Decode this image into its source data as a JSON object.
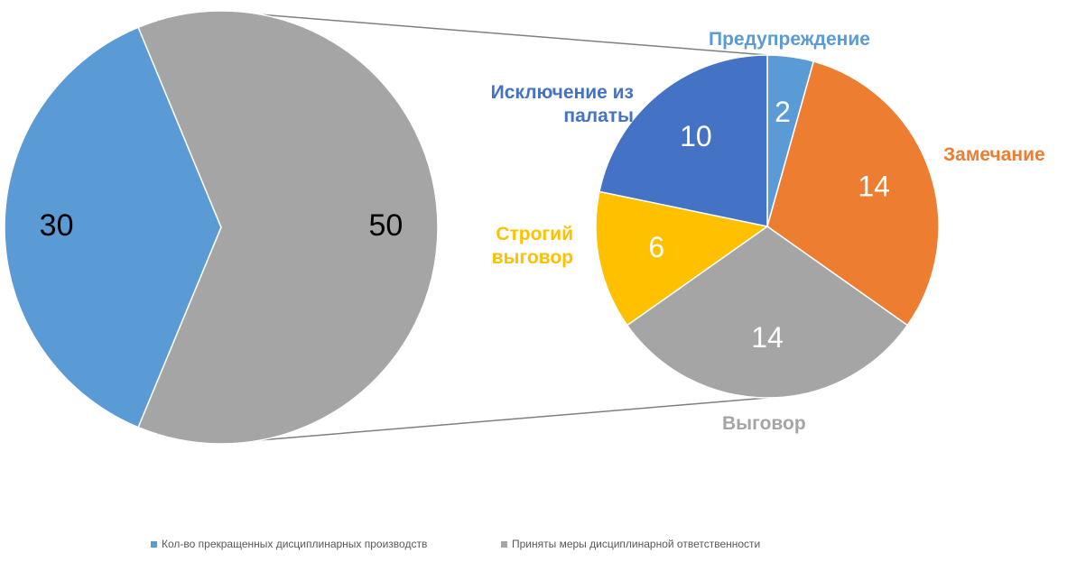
{
  "chart_data": [
    {
      "type": "pie",
      "categories": [
        "Кол-во прекращенных дисциплинарных производств",
        "Приняты меры дисциплинарной ответственности"
      ],
      "values": [
        30,
        50
      ],
      "colors": [
        "#5b9bd5",
        "#a5a5a5"
      ],
      "legend": "bottom"
    },
    {
      "type": "pie",
      "categories": [
        "Предупреждение",
        "Замечание",
        "Выговор",
        "Строгий выговор",
        "Исключение из палаты"
      ],
      "values": [
        2,
        14,
        14,
        6,
        10
      ],
      "colors": [
        "#5b9bd5",
        "#ed7d31",
        "#a5a5a5",
        "#ffc000",
        "#4472c4"
      ]
    }
  ]
}
